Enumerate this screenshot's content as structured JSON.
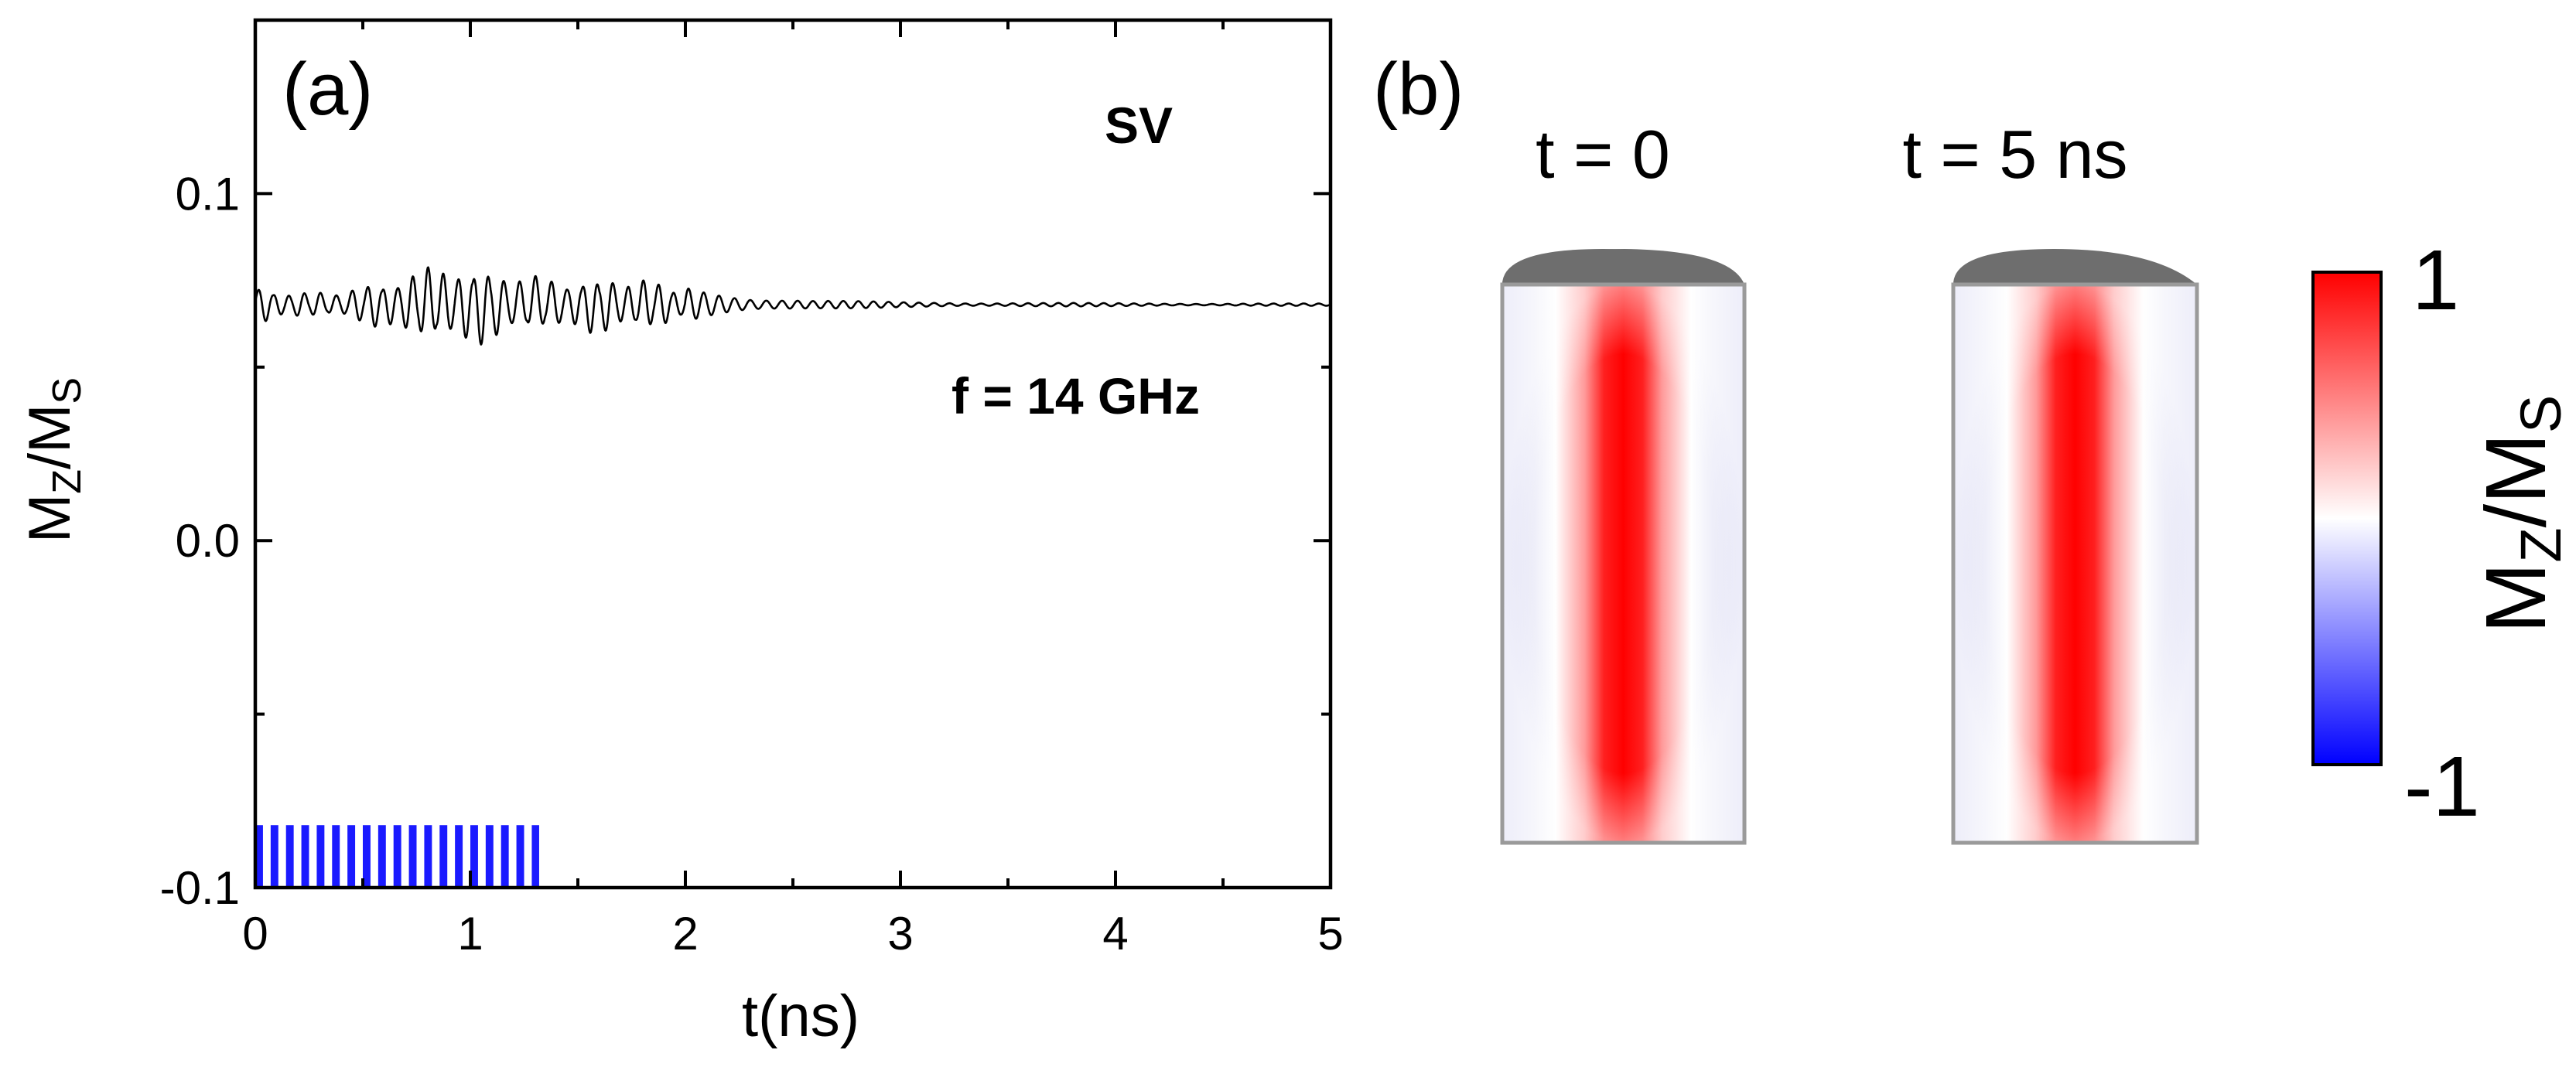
{
  "chart_data": [
    {
      "type": "line",
      "panel_label": "(a)",
      "xlabel": "t(ns)",
      "ylabel": {
        "main": "M",
        "sub1": "Z",
        "slash": "/M",
        "sub2": "S"
      },
      "xlim": [
        0,
        5
      ],
      "ylim": [
        -0.1,
        0.15
      ],
      "xticks": [
        0,
        1,
        2,
        3,
        4,
        5
      ],
      "xtick_labels": [
        "0",
        "1",
        "2",
        "3",
        "4",
        "5"
      ],
      "yticks": [
        -0.1,
        0.0,
        0.1
      ],
      "ytick_labels": [
        "-0.1",
        "0.0",
        "0.1"
      ],
      "grid": false,
      "annotations": {
        "state": "SV",
        "frequency": "f = 14 GHz"
      },
      "series": [
        {
          "color": "#000000",
          "baseline": 0.068,
          "envelope_t": [
            0.0,
            0.3,
            0.6,
            0.9,
            1.1,
            1.3,
            1.5,
            1.7,
            1.9,
            2.1,
            2.3,
            2.6,
            3.0,
            4.0,
            5.0
          ],
          "envelope_amp": [
            0.006,
            0.007,
            0.008,
            0.011,
            0.014,
            0.016,
            0.011,
            0.008,
            0.006,
            0.004,
            0.0025,
            0.0012,
            0.0007,
            0.0004,
            0.0003
          ],
          "oscillation_freq_ghz": 14
        }
      ],
      "pulse": {
        "color": "#1a1aff",
        "t_start": 0.0,
        "t_end": 1.32,
        "y_bottom": -0.1,
        "y_top": -0.082,
        "freq_ghz": 14
      }
    },
    {
      "type": "heatmap",
      "panel_label": "(b)",
      "snapshots": [
        {
          "title": "t = 0"
        },
        {
          "title": "t = 5 ns"
        }
      ],
      "colorbar": {
        "min": -1,
        "max": 1,
        "min_label": "-1",
        "max_label": "1",
        "colors": [
          "#0000ff",
          "#ffffff",
          "#ff0000"
        ],
        "label": {
          "main": "M",
          "sub1": "Z",
          "slash": "/M",
          "sub2": "S"
        }
      }
    }
  ]
}
